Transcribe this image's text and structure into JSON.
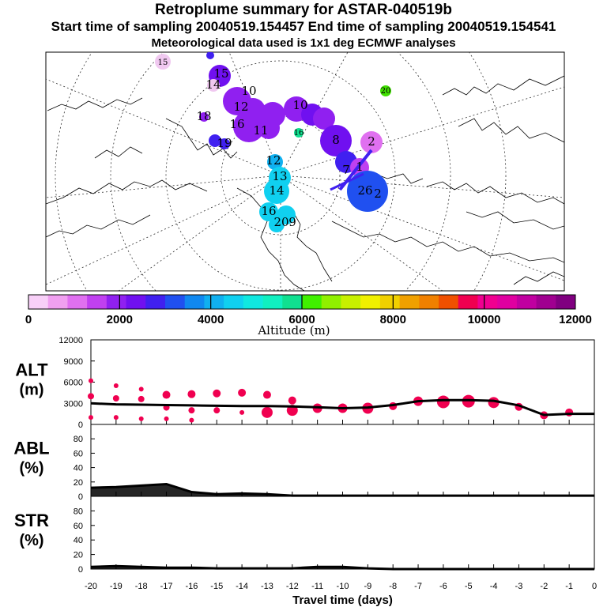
{
  "header": {
    "title": "Retroplume summary for ASTAR-040519b",
    "sampling_line": "Start time of sampling 20040519.154457     End time of sampling 20040519.154541",
    "met_line": "Meteorological data used is 1x1 deg ECMWF analyses"
  },
  "colorbar": {
    "label": "Altitude (m)",
    "ticks": [
      "0",
      "2000",
      "4000",
      "6000",
      "8000",
      "10000",
      "12000"
    ],
    "colors": [
      "#f8d0f8",
      "#f0a0f0",
      "#e070f0",
      "#c040f0",
      "#9020f0",
      "#7010f0",
      "#4020f0",
      "#2050f0",
      "#1088f0",
      "#10b0f0",
      "#10d0f0",
      "#10e8e0",
      "#10f0c0",
      "#10e090",
      "#40f000",
      "#90f000",
      "#c8f000",
      "#f0f000",
      "#f0d000",
      "#f0a000",
      "#f08000",
      "#f05000",
      "#f00050",
      "#f00090",
      "#e000a0",
      "#c000a0",
      "#a00090",
      "#800080"
    ]
  },
  "map_labels": [
    {
      "text": "15",
      "color": "#f0a0f0"
    },
    {
      "text": "15",
      "color": "#9020f0"
    },
    {
      "text": "14",
      "color": "#f0c8f0"
    },
    {
      "text": "10",
      "color": "#9020f0"
    },
    {
      "text": "12",
      "color": "#9020f0"
    },
    {
      "text": "20",
      "color": "#40e000"
    },
    {
      "text": "16",
      "color": "#9020f0"
    },
    {
      "text": "11",
      "color": "#9020f0"
    },
    {
      "text": "16",
      "color": "#10e090"
    },
    {
      "text": "10",
      "color": "#9020f0"
    },
    {
      "text": "8",
      "color": "#7010f0"
    },
    {
      "text": "2",
      "color": "#e070f0"
    },
    {
      "text": "18",
      "color": "#7010f0"
    },
    {
      "text": "19",
      "color": "#4020f0"
    },
    {
      "text": "12",
      "color": "#10b0f0"
    },
    {
      "text": "13",
      "color": "#10d0f0"
    },
    {
      "text": "14",
      "color": "#10d0f0"
    },
    {
      "text": "16",
      "color": "#10d0f0"
    },
    {
      "text": "20",
      "color": "#10d0f0"
    },
    {
      "text": "9",
      "color": "#10d0f0"
    },
    {
      "text": "1",
      "color": "#c040f0"
    },
    {
      "text": "7",
      "color": "#c040f0"
    },
    {
      "text": "26",
      "color": "#2050f0"
    },
    {
      "text": "2",
      "color": "#2050f0"
    }
  ],
  "panels": {
    "alt": {
      "label_top": "ALT",
      "label_bottom": "(m)"
    },
    "abl": {
      "label_top": "ABL",
      "label_bottom": "(%)"
    },
    "str": {
      "label_top": "STR",
      "label_bottom": "(%)"
    }
  },
  "xaxis": {
    "label": "Travel time (days)"
  },
  "chart_data": [
    {
      "type": "line",
      "name": "alt",
      "ylabel": "ALT (m)",
      "ylim": [
        0,
        12000
      ],
      "yticks": [
        0,
        3000,
        6000,
        9000,
        12000
      ],
      "xlim": [
        -20,
        0
      ],
      "xticks": [
        -20,
        -19,
        -18,
        -17,
        -16,
        -15,
        -14,
        -13,
        -12,
        -11,
        -10,
        -9,
        -8,
        -7,
        -6,
        -5,
        -4,
        -3,
        -2,
        -1,
        0
      ],
      "x": [
        -20,
        -19,
        -18,
        -17,
        -16,
        -15,
        -14,
        -13,
        -12,
        -11,
        -10,
        -9,
        -8,
        -7,
        -6,
        -5,
        -4,
        -3,
        -2,
        -1,
        0
      ],
      "values": [
        3000,
        2850,
        2800,
        2750,
        2700,
        2650,
        2600,
        2600,
        2550,
        2450,
        2300,
        2400,
        2750,
        3300,
        3450,
        3450,
        3350,
        2700,
        1350,
        1500,
        1500
      ],
      "clusters": {
        "x": [
          -20,
          -20,
          -20,
          -19,
          -19,
          -19,
          -18,
          -18,
          -18,
          -17,
          -17,
          -17,
          -16,
          -16,
          -16,
          -15,
          -15,
          -14,
          -14,
          -13,
          -13,
          -12,
          -12,
          -11,
          -10,
          -9,
          -8,
          -7,
          -6,
          -5,
          -4,
          -3,
          -2,
          -1
        ],
        "y": [
          6200,
          4000,
          1000,
          5500,
          3700,
          1000,
          5000,
          3600,
          800,
          4200,
          2400,
          800,
          4300,
          2000,
          600,
          4400,
          2000,
          4500,
          1700,
          4200,
          1700,
          3400,
          2000,
          2300,
          2300,
          2300,
          2600,
          3300,
          3200,
          3300,
          3100,
          2500,
          1300,
          1700
        ],
        "size": [
          3,
          4,
          3,
          3,
          4,
          3,
          3,
          4,
          3,
          5,
          4,
          3,
          5,
          4,
          3,
          5,
          4,
          5,
          3,
          5,
          7,
          5,
          7,
          6,
          6,
          7,
          5,
          6,
          8,
          8,
          7,
          5,
          5,
          5
        ]
      }
    },
    {
      "type": "area",
      "name": "abl",
      "ylabel": "ABL (%)",
      "ylim": [
        0,
        100
      ],
      "yticks": [
        0,
        20,
        40,
        60,
        80
      ],
      "x": [
        -20,
        -19,
        -18,
        -17,
        -16,
        -15,
        -14,
        -13,
        -12,
        -11,
        -10,
        -9,
        -8,
        -7,
        -6,
        -5,
        -4,
        -3,
        -2,
        -1,
        0
      ],
      "values": [
        12,
        13,
        15,
        17,
        6,
        3,
        4,
        3,
        1,
        1,
        1,
        1,
        1,
        1,
        1,
        1,
        1,
        1,
        1,
        1,
        1
      ]
    },
    {
      "type": "area",
      "name": "str",
      "ylabel": "STR (%)",
      "ylim": [
        0,
        100
      ],
      "yticks": [
        0,
        20,
        40,
        60,
        80
      ],
      "x": [
        -20,
        -19,
        -18,
        -17,
        -16,
        -15,
        -14,
        -13,
        -12,
        -11,
        -10,
        -9,
        -8,
        -7,
        -6,
        -5,
        -4,
        -3,
        -2,
        -1,
        0
      ],
      "values": [
        3,
        4,
        3,
        2,
        2,
        1,
        1,
        1,
        1,
        3,
        3,
        1,
        0,
        0,
        0,
        0,
        0,
        0,
        0,
        0,
        0
      ]
    }
  ]
}
